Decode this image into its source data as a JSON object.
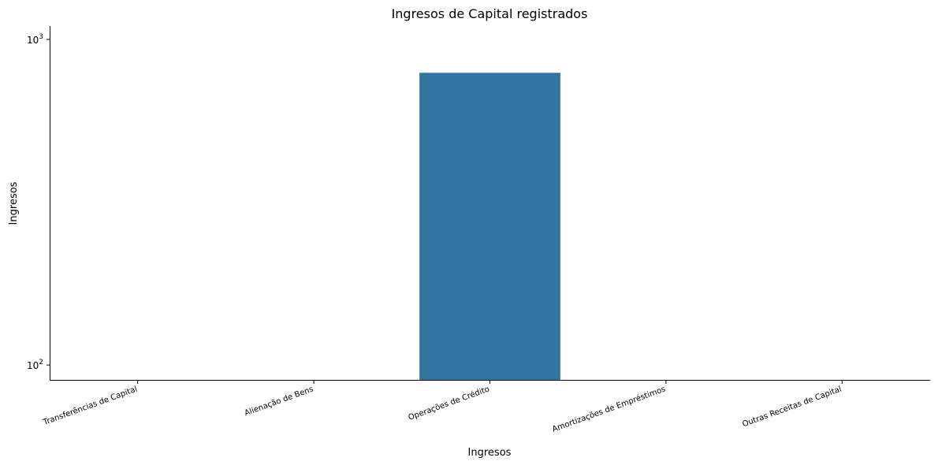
{
  "chart_data": {
    "type": "bar",
    "title": "Ingresos de Capital registrados",
    "xlabel": "Ingresos",
    "ylabel": "Ingresos",
    "yscale": "log",
    "ylim": [
      90,
      1100
    ],
    "y_ticks": [
      {
        "value": 100,
        "base": "10",
        "exp": "2"
      },
      {
        "value": 1000,
        "base": "10",
        "exp": "3"
      }
    ],
    "categories": [
      "Transferências de Capital",
      "Alienação de Bens",
      "Operações de Crédito",
      "Amortizações de Empréstimos",
      "Outras Receitas de Capital"
    ],
    "values": [
      0,
      0,
      790,
      0,
      0
    ],
    "bar_color": "#3274a1",
    "grid": false,
    "legend": "none"
  }
}
